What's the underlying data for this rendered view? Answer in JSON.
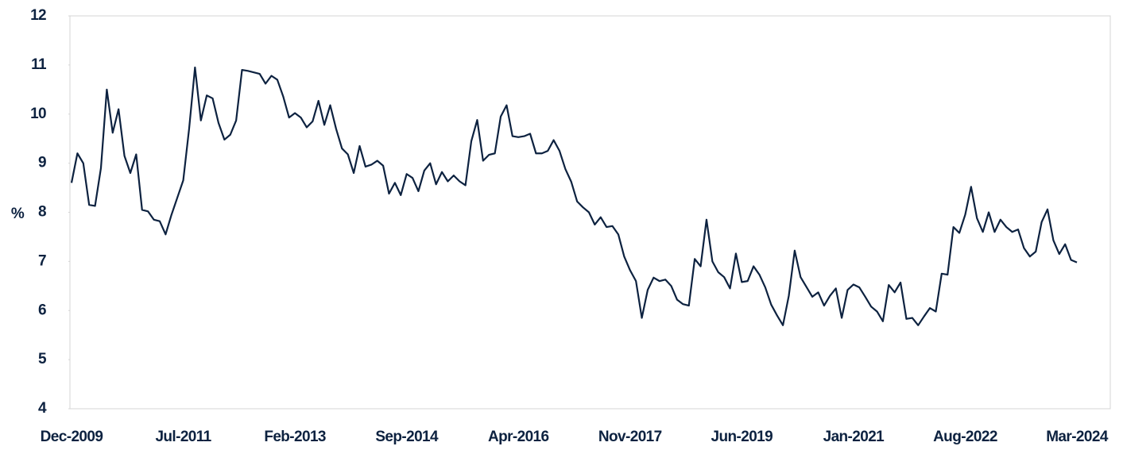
{
  "chart_data": {
    "type": "line",
    "y_label": "%",
    "categories": [
      "Dec-2009",
      null,
      null,
      null,
      null,
      null,
      null,
      null,
      null,
      null,
      null,
      null,
      null,
      null,
      null,
      null,
      null,
      null,
      null,
      "Jul-2011",
      null,
      null,
      null,
      null,
      null,
      null,
      null,
      null,
      null,
      null,
      null,
      null,
      null,
      null,
      null,
      null,
      null,
      null,
      "Feb-2013",
      null,
      null,
      null,
      null,
      null,
      null,
      null,
      null,
      null,
      null,
      null,
      null,
      null,
      null,
      null,
      null,
      null,
      null,
      "Sep-2014",
      null,
      null,
      null,
      null,
      null,
      null,
      null,
      null,
      null,
      null,
      null,
      null,
      null,
      null,
      null,
      null,
      null,
      null,
      "Apr-2016",
      null,
      null,
      null,
      null,
      null,
      null,
      null,
      null,
      null,
      null,
      null,
      null,
      null,
      null,
      null,
      null,
      null,
      null,
      "Nov-2017",
      null,
      null,
      null,
      null,
      null,
      null,
      null,
      null,
      null,
      null,
      null,
      null,
      null,
      null,
      null,
      null,
      null,
      null,
      "Jun-2019",
      null,
      null,
      null,
      null,
      null,
      null,
      null,
      null,
      null,
      null,
      null,
      null,
      null,
      null,
      null,
      null,
      null,
      null,
      "Jan-2021",
      null,
      null,
      null,
      null,
      null,
      null,
      null,
      null,
      null,
      null,
      null,
      null,
      null,
      null,
      null,
      null,
      null,
      null,
      "Aug-2022",
      null,
      null,
      null,
      null,
      null,
      null,
      null,
      null,
      null,
      null,
      null,
      null,
      null,
      null,
      null,
      null,
      null,
      null,
      "Mar-2024"
    ],
    "values": [
      8.6,
      9.2,
      9.0,
      8.15,
      8.13,
      8.9,
      10.5,
      9.62,
      10.1,
      9.15,
      8.8,
      9.18,
      8.05,
      8.02,
      7.85,
      7.82,
      7.55,
      7.95,
      8.3,
      8.65,
      9.7,
      10.95,
      9.87,
      10.38,
      10.32,
      9.82,
      9.48,
      9.58,
      9.87,
      10.9,
      10.88,
      10.85,
      10.82,
      10.62,
      10.78,
      10.7,
      10.36,
      9.93,
      10.02,
      9.93,
      9.73,
      9.85,
      10.27,
      9.78,
      10.18,
      9.7,
      9.3,
      9.18,
      8.8,
      9.35,
      8.93,
      8.97,
      9.05,
      8.95,
      8.38,
      8.6,
      8.35,
      8.78,
      8.7,
      8.43,
      8.85,
      9.0,
      8.57,
      8.82,
      8.63,
      8.75,
      8.63,
      8.55,
      9.45,
      9.88,
      9.05,
      9.17,
      9.2,
      9.95,
      10.18,
      9.55,
      9.53,
      9.55,
      9.6,
      9.2,
      9.2,
      9.25,
      9.47,
      9.25,
      8.88,
      8.62,
      8.22,
      8.1,
      8.0,
      7.75,
      7.9,
      7.7,
      7.72,
      7.55,
      7.1,
      6.82,
      6.6,
      5.85,
      6.42,
      6.67,
      6.6,
      6.63,
      6.5,
      6.22,
      6.13,
      6.1,
      7.05,
      6.9,
      7.85,
      7.0,
      6.78,
      6.68,
      6.45,
      7.16,
      6.58,
      6.6,
      6.9,
      6.73,
      6.47,
      6.12,
      5.9,
      5.7,
      6.3,
      7.22,
      6.68,
      6.48,
      6.28,
      6.37,
      6.1,
      6.3,
      6.45,
      5.85,
      6.42,
      6.53,
      6.47,
      6.28,
      6.08,
      5.98,
      5.78,
      6.52,
      6.37,
      6.57,
      5.83,
      5.85,
      5.7,
      5.88,
      6.05,
      5.98,
      6.75,
      6.73,
      7.7,
      7.58,
      7.95,
      8.52,
      7.88,
      7.6,
      8.0,
      7.6,
      7.85,
      7.7,
      7.6,
      7.65,
      7.27,
      7.1,
      7.2,
      7.8,
      8.06,
      7.43,
      7.15,
      7.35,
      7.03,
      6.98
    ],
    "color": "#0d2240",
    "ylim": [
      4,
      12
    ],
    "yticks": [
      4,
      5,
      6,
      7,
      8,
      9,
      10,
      11,
      12
    ]
  }
}
